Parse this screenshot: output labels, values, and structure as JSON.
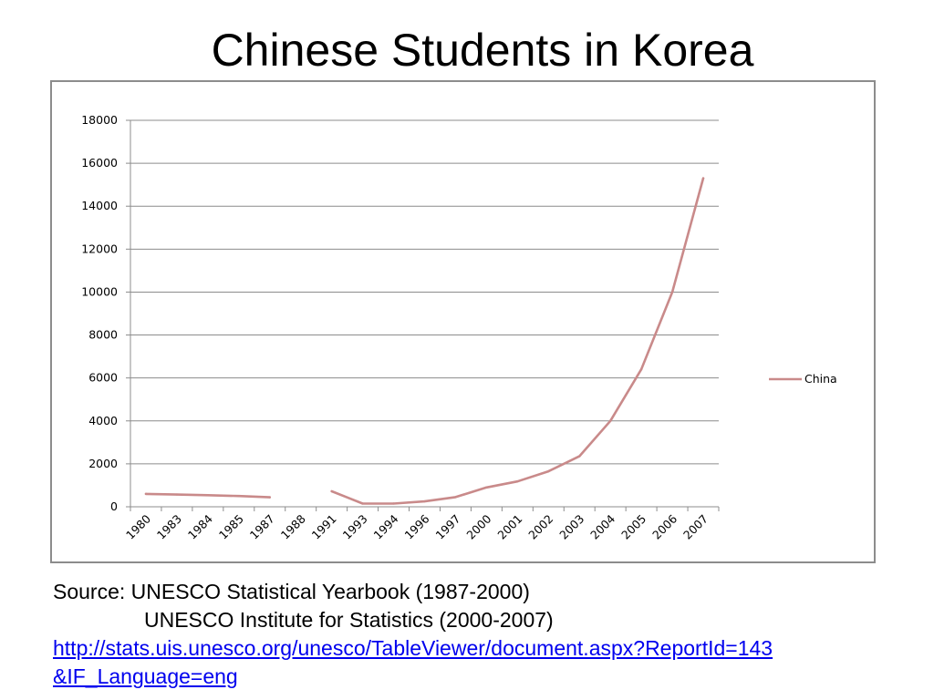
{
  "slide": {
    "title": "Chinese Students in Korea"
  },
  "source": {
    "line1": "Source: UNESCO Statistical Yearbook (1987-2000)",
    "line2": "UNESCO Institute for Statistics (2000-2007)",
    "link_line1": "http://stats.uis.unesco.org/unesco/TableViewer/document.aspx?ReportId=143",
    "link_line2": "&IF_Language=eng"
  },
  "chart_data": {
    "type": "line",
    "title": "",
    "xlabel": "",
    "ylabel": "",
    "categories": [
      "1980",
      "1983",
      "1984",
      "1985",
      "1987",
      "1988",
      "1991",
      "1993",
      "1994",
      "1996",
      "1997",
      "2000",
      "2001",
      "2002",
      "2003",
      "2004",
      "2005",
      "2006",
      "2007"
    ],
    "series": [
      {
        "name": "China",
        "color": "#c98a8a",
        "values": [
          600,
          570,
          540,
          500,
          440,
          null,
          720,
          150,
          150,
          250,
          450,
          900,
          1180,
          1650,
          2350,
          4000,
          6400,
          10000,
          15300
        ]
      }
    ],
    "ylim": [
      0,
      18000
    ],
    "yticks": [
      "0",
      "2000",
      "4000",
      "6000",
      "8000",
      "10000",
      "12000",
      "14000",
      "16000",
      "18000"
    ],
    "grid": true,
    "legend": "right"
  }
}
